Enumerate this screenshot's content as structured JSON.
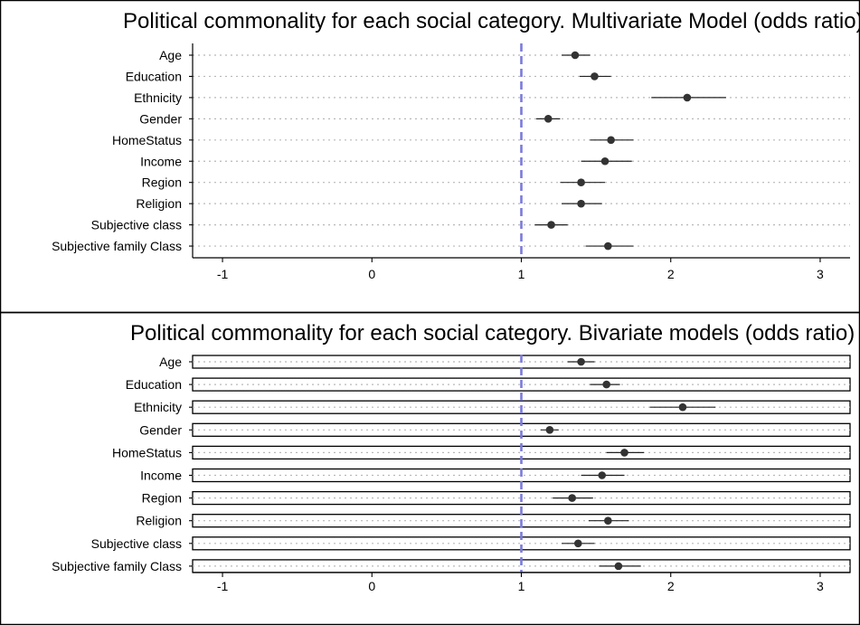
{
  "chart_data": [
    {
      "type": "forest",
      "title": "Political commonality for each social category. Multivariate Model (odds ratio)",
      "xlabel": "",
      "ylabel": "",
      "xlim": [
        -1.2,
        3.2
      ],
      "x_ticks": [
        -1,
        0,
        1,
        2,
        3
      ],
      "reference_line": 1,
      "reference_line_color": "#7b7bdb",
      "grid": "horizontal dotted",
      "categories": [
        "Age",
        "Education",
        "Ethnicity",
        "Gender",
        "HomeStatus",
        "Income",
        "Region",
        "Religion",
        "Subjective class",
        "Subjective family Class"
      ],
      "estimates": [
        1.36,
        1.49,
        2.11,
        1.18,
        1.6,
        1.56,
        1.4,
        1.4,
        1.2,
        1.58
      ],
      "lower": [
        1.27,
        1.39,
        1.87,
        1.1,
        1.46,
        1.4,
        1.26,
        1.27,
        1.09,
        1.43
      ],
      "upper": [
        1.46,
        1.6,
        2.37,
        1.26,
        1.75,
        1.74,
        1.56,
        1.54,
        1.31,
        1.75
      ]
    },
    {
      "type": "forest",
      "title": "Political commonality for each social category. Bivariate models (odds ratio)",
      "xlabel": "",
      "ylabel": "",
      "xlim": [
        -1.2,
        3.2
      ],
      "x_ticks": [
        -1,
        0,
        1,
        2,
        3
      ],
      "reference_line": 1,
      "reference_line_color": "#7b7bdb",
      "grid": "horizontal dotted",
      "categories": [
        "Age",
        "Education",
        "Ethnicity",
        "Gender",
        "HomeStatus",
        "Income",
        "Region",
        "Religion",
        "Subjective class",
        "Subjective family Class"
      ],
      "estimates": [
        1.4,
        1.57,
        2.08,
        1.19,
        1.69,
        1.54,
        1.34,
        1.58,
        1.38,
        1.65
      ],
      "lower": [
        1.31,
        1.46,
        1.86,
        1.13,
        1.57,
        1.4,
        1.21,
        1.45,
        1.27,
        1.52
      ],
      "upper": [
        1.49,
        1.66,
        2.3,
        1.25,
        1.82,
        1.69,
        1.48,
        1.72,
        1.49,
        1.8
      ]
    }
  ]
}
